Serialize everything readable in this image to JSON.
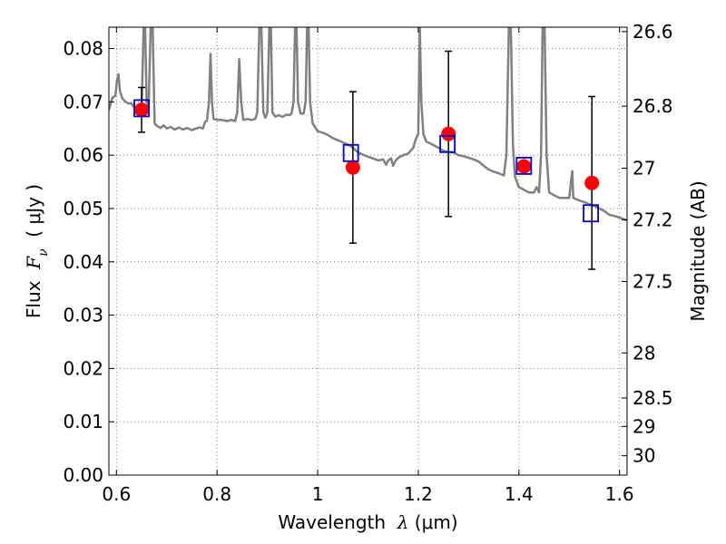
{
  "chart_data": {
    "type": "scatter",
    "title": "",
    "xlabel": {
      "prefix": "Wavelength  ",
      "symbol": "λ",
      "suffix": " (μm)"
    },
    "ylabel": {
      "prefix": "Flux  ",
      "symbol": "F",
      "subscript": "ν",
      "suffix": "  ( μJy )"
    },
    "y2label": "Magnitude (AB)",
    "xlim": [
      0.585,
      1.615
    ],
    "ylim": [
      0.0,
      0.084
    ],
    "grid": true,
    "x_ticks": [
      0.6,
      0.8,
      1.0,
      1.2,
      1.4,
      1.6
    ],
    "x_tick_labels": [
      "0.6",
      "0.8",
      "1",
      "1.2",
      "1.4",
      "1.6"
    ],
    "y_ticks": [
      0.0,
      0.01,
      0.02,
      0.03,
      0.04,
      0.05,
      0.06,
      0.07,
      0.08
    ],
    "y_tick_labels": [
      "0.00",
      "0.01",
      "0.02",
      "0.03",
      "0.04",
      "0.05",
      "0.06",
      "0.07",
      "0.08"
    ],
    "y2_ticks": [
      {
        "mag": 26.6,
        "label": "26.6"
      },
      {
        "mag": 26.8,
        "label": "26.8"
      },
      {
        "mag": 27.0,
        "label": "27"
      },
      {
        "mag": 27.2,
        "label": "27.2"
      },
      {
        "mag": 27.5,
        "label": "27.5"
      },
      {
        "mag": 28.0,
        "label": "28"
      },
      {
        "mag": 28.5,
        "label": "28.5"
      },
      {
        "mag": 29.0,
        "label": "29"
      },
      {
        "mag": 30.0,
        "label": "30"
      }
    ],
    "colors": {
      "observed": "#ff0000",
      "model": "#0000cc",
      "spectrum": "#808080",
      "errorbar": "#000000",
      "grid": "#808080"
    },
    "series": [
      {
        "kind": "observed",
        "marker": "circle",
        "points": [
          {
            "x": 0.65,
            "y": 0.0685,
            "yerr": 0.0042
          },
          {
            "x": 1.07,
            "y": 0.0577,
            "yerr": 0.0142
          },
          {
            "x": 1.26,
            "y": 0.064,
            "yerr": 0.0155
          },
          {
            "x": 1.41,
            "y": 0.0579,
            "yerr": null
          },
          {
            "x": 1.545,
            "y": 0.0548,
            "yerr": 0.0162
          }
        ]
      },
      {
        "kind": "model",
        "marker": "square",
        "points": [
          {
            "x": 0.65,
            "y": 0.0688
          },
          {
            "x": 1.066,
            "y": 0.0604
          },
          {
            "x": 1.258,
            "y": 0.0621
          },
          {
            "x": 1.41,
            "y": 0.058
          },
          {
            "x": 1.543,
            "y": 0.0491
          }
        ]
      },
      {
        "kind": "spectrum",
        "marker": "line",
        "points": [
          [
            0.585,
            0.0685
          ],
          [
            0.592,
            0.0708
          ],
          [
            0.598,
            0.0712
          ],
          [
            0.601,
            0.074
          ],
          [
            0.604,
            0.0752
          ],
          [
            0.607,
            0.072
          ],
          [
            0.612,
            0.0706
          ],
          [
            0.618,
            0.07
          ],
          [
            0.624,
            0.0697
          ],
          [
            0.63,
            0.0697
          ],
          [
            0.635,
            0.069
          ],
          [
            0.64,
            0.0688
          ],
          [
            0.645,
            0.0686
          ],
          [
            0.65,
            0.0684
          ],
          [
            0.654,
            0.084
          ],
          [
            0.657,
            0.084
          ],
          [
            0.66,
            0.07
          ],
          [
            0.664,
            0.069
          ],
          [
            0.668,
            0.084
          ],
          [
            0.672,
            0.084
          ],
          [
            0.676,
            0.066
          ],
          [
            0.68,
            0.0655
          ],
          [
            0.688,
            0.0651
          ],
          [
            0.694,
            0.0656
          ],
          [
            0.7,
            0.065
          ],
          [
            0.708,
            0.0653
          ],
          [
            0.716,
            0.0648
          ],
          [
            0.724,
            0.0652
          ],
          [
            0.732,
            0.0648
          ],
          [
            0.74,
            0.0651
          ],
          [
            0.75,
            0.0647
          ],
          [
            0.758,
            0.065
          ],
          [
            0.766,
            0.0652
          ],
          [
            0.772,
            0.065
          ],
          [
            0.776,
            0.0662
          ],
          [
            0.78,
            0.0665
          ],
          [
            0.784,
            0.07
          ],
          [
            0.787,
            0.079
          ],
          [
            0.79,
            0.07
          ],
          [
            0.793,
            0.0668
          ],
          [
            0.8,
            0.0666
          ],
          [
            0.81,
            0.0666
          ],
          [
            0.82,
            0.0664
          ],
          [
            0.828,
            0.0666
          ],
          [
            0.836,
            0.0664
          ],
          [
            0.84,
            0.068
          ],
          [
            0.844,
            0.078
          ],
          [
            0.848,
            0.07
          ],
          [
            0.852,
            0.0666
          ],
          [
            0.86,
            0.0668
          ],
          [
            0.868,
            0.0666
          ],
          [
            0.876,
            0.0668
          ],
          [
            0.88,
            0.068
          ],
          [
            0.884,
            0.084
          ],
          [
            0.888,
            0.084
          ],
          [
            0.892,
            0.068
          ],
          [
            0.896,
            0.067
          ],
          [
            0.9,
            0.068
          ],
          [
            0.904,
            0.084
          ],
          [
            0.907,
            0.084
          ],
          [
            0.91,
            0.068
          ],
          [
            0.916,
            0.0672
          ],
          [
            0.922,
            0.0675
          ],
          [
            0.93,
            0.0672
          ],
          [
            0.938,
            0.0676
          ],
          [
            0.944,
            0.0675
          ],
          [
            0.948,
            0.0678
          ],
          [
            0.952,
            0.07
          ],
          [
            0.955,
            0.084
          ],
          [
            0.958,
            0.084
          ],
          [
            0.961,
            0.07
          ],
          [
            0.966,
            0.0678
          ],
          [
            0.972,
            0.0678
          ],
          [
            0.976,
            0.07
          ],
          [
            0.979,
            0.084
          ],
          [
            0.982,
            0.084
          ],
          [
            0.985,
            0.07
          ],
          [
            0.99,
            0.066
          ],
          [
            1.0,
            0.0645
          ],
          [
            1.01,
            0.0642
          ],
          [
            1.02,
            0.0638
          ],
          [
            1.03,
            0.0632
          ],
          [
            1.04,
            0.0628
          ],
          [
            1.05,
            0.0624
          ],
          [
            1.06,
            0.062
          ],
          [
            1.07,
            0.0614
          ],
          [
            1.08,
            0.0605
          ],
          [
            1.09,
            0.0601
          ],
          [
            1.1,
            0.0597
          ],
          [
            1.11,
            0.0594
          ],
          [
            1.12,
            0.059
          ],
          [
            1.13,
            0.0592
          ],
          [
            1.136,
            0.0582
          ],
          [
            1.14,
            0.059
          ],
          [
            1.146,
            0.0594
          ],
          [
            1.15,
            0.058
          ],
          [
            1.155,
            0.059
          ],
          [
            1.16,
            0.0595
          ],
          [
            1.17,
            0.06
          ],
          [
            1.18,
            0.0603
          ],
          [
            1.19,
            0.0614
          ],
          [
            1.195,
            0.063
          ],
          [
            1.2,
            0.064
          ],
          [
            1.203,
            0.084
          ],
          [
            1.206,
            0.07
          ],
          [
            1.21,
            0.064
          ],
          [
            1.216,
            0.0625
          ],
          [
            1.224,
            0.0622
          ],
          [
            1.232,
            0.0618
          ],
          [
            1.24,
            0.0614
          ],
          [
            1.25,
            0.0608
          ],
          [
            1.26,
            0.0606
          ],
          [
            1.27,
            0.0605
          ],
          [
            1.28,
            0.06
          ],
          [
            1.29,
            0.0598
          ],
          [
            1.3,
            0.0595
          ],
          [
            1.31,
            0.0592
          ],
          [
            1.32,
            0.0588
          ],
          [
            1.33,
            0.058
          ],
          [
            1.34,
            0.0573
          ],
          [
            1.35,
            0.0569
          ],
          [
            1.36,
            0.0566
          ],
          [
            1.37,
            0.0562
          ],
          [
            1.375,
            0.06
          ],
          [
            1.38,
            0.084
          ],
          [
            1.384,
            0.084
          ],
          [
            1.388,
            0.062
          ],
          [
            1.392,
            0.056
          ],
          [
            1.4,
            0.054
          ],
          [
            1.41,
            0.0535
          ],
          [
            1.42,
            0.053
          ],
          [
            1.43,
            0.053
          ],
          [
            1.435,
            0.054
          ],
          [
            1.44,
            0.053
          ],
          [
            1.444,
            0.06
          ],
          [
            1.447,
            0.084
          ],
          [
            1.451,
            0.084
          ],
          [
            1.455,
            0.06
          ],
          [
            1.46,
            0.053
          ],
          [
            1.47,
            0.0525
          ],
          [
            1.48,
            0.052
          ],
          [
            1.49,
            0.052
          ],
          [
            1.5,
            0.052
          ],
          [
            1.506,
            0.057
          ],
          [
            1.508,
            0.052
          ],
          [
            1.52,
            0.0515
          ],
          [
            1.53,
            0.0512
          ],
          [
            1.54,
            0.0508
          ],
          [
            1.55,
            0.0505
          ],
          [
            1.56,
            0.05
          ],
          [
            1.57,
            0.0495
          ],
          [
            1.58,
            0.0488
          ],
          [
            1.59,
            0.0486
          ],
          [
            1.6,
            0.0483
          ],
          [
            1.615,
            0.0478
          ]
        ]
      }
    ]
  }
}
